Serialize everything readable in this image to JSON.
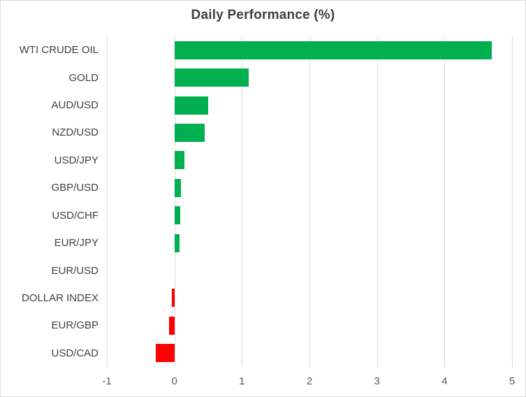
{
  "chart_data": {
    "type": "bar",
    "orientation": "horizontal",
    "title": "Daily Performance (%)",
    "categories": [
      "WTI CRUDE OIL",
      "GOLD",
      "AUD/USD",
      "NZD/USD",
      "USD/JPY",
      "GBP/USD",
      "USD/CHF",
      "EUR/JPY",
      "EUR/USD",
      "DOLLAR INDEX",
      "EUR/GBP",
      "USD/CAD"
    ],
    "values": [
      4.7,
      1.1,
      0.5,
      0.45,
      0.15,
      0.1,
      0.09,
      0.08,
      0,
      -0.04,
      -0.08,
      -0.28
    ],
    "xlabel": "",
    "ylabel": "",
    "xlim": [
      -1,
      5
    ],
    "x_ticks": [
      "-1",
      "0",
      "1",
      "2",
      "3",
      "4",
      "5"
    ],
    "grid": true,
    "legend": false
  },
  "colors": {
    "positive_bar": "#00B050",
    "negative_bar": "#FF0000",
    "gridline": "#D9D9D9",
    "axis_text": "#595959",
    "category_text": "#3F3F3F",
    "title_text": "#404040",
    "chart_border": "#D9D9D9",
    "background": "#FFFFFF"
  }
}
